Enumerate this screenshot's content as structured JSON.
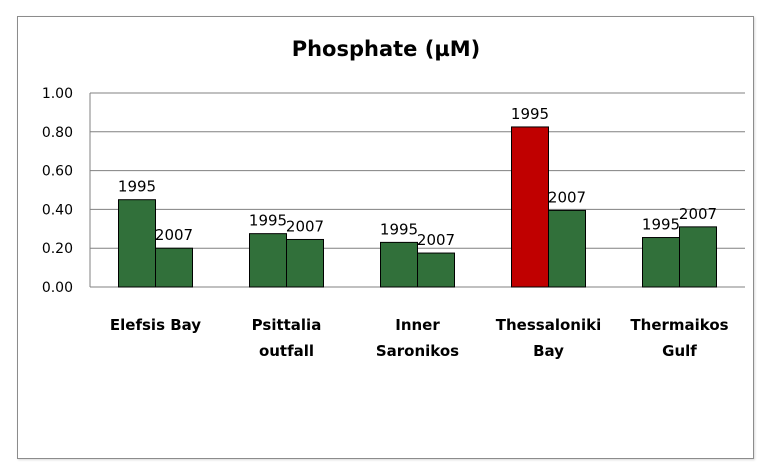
{
  "chart_data": {
    "type": "bar",
    "title": "Phosphate (µM)",
    "xlabel": "",
    "ylabel": "",
    "ylim": [
      0,
      1.0
    ],
    "yticks": [
      "0.00",
      "0.20",
      "0.40",
      "0.60",
      "0.80",
      "1.00"
    ],
    "grid": true,
    "legend": "none",
    "categories": [
      [
        "Elefsis Bay"
      ],
      [
        "Psittalia",
        "outfall"
      ],
      [
        "Inner",
        "Saronikos"
      ],
      [
        "Thessaloniki",
        "Bay"
      ],
      [
        "Thermaikos",
        "Gulf"
      ]
    ],
    "series": [
      {
        "label": "1995",
        "values": [
          0.45,
          0.275,
          0.23,
          0.825,
          0.255
        ]
      },
      {
        "label": "2007",
        "values": [
          0.2,
          0.245,
          0.175,
          0.395,
          0.31
        ]
      }
    ],
    "colors": {
      "bar": "#31703a",
      "highlight": "#c00000",
      "bar_border": "#000000",
      "grid": "#808080"
    },
    "highlighted_bar": {
      "category_index": 3,
      "series_index": 0
    }
  }
}
